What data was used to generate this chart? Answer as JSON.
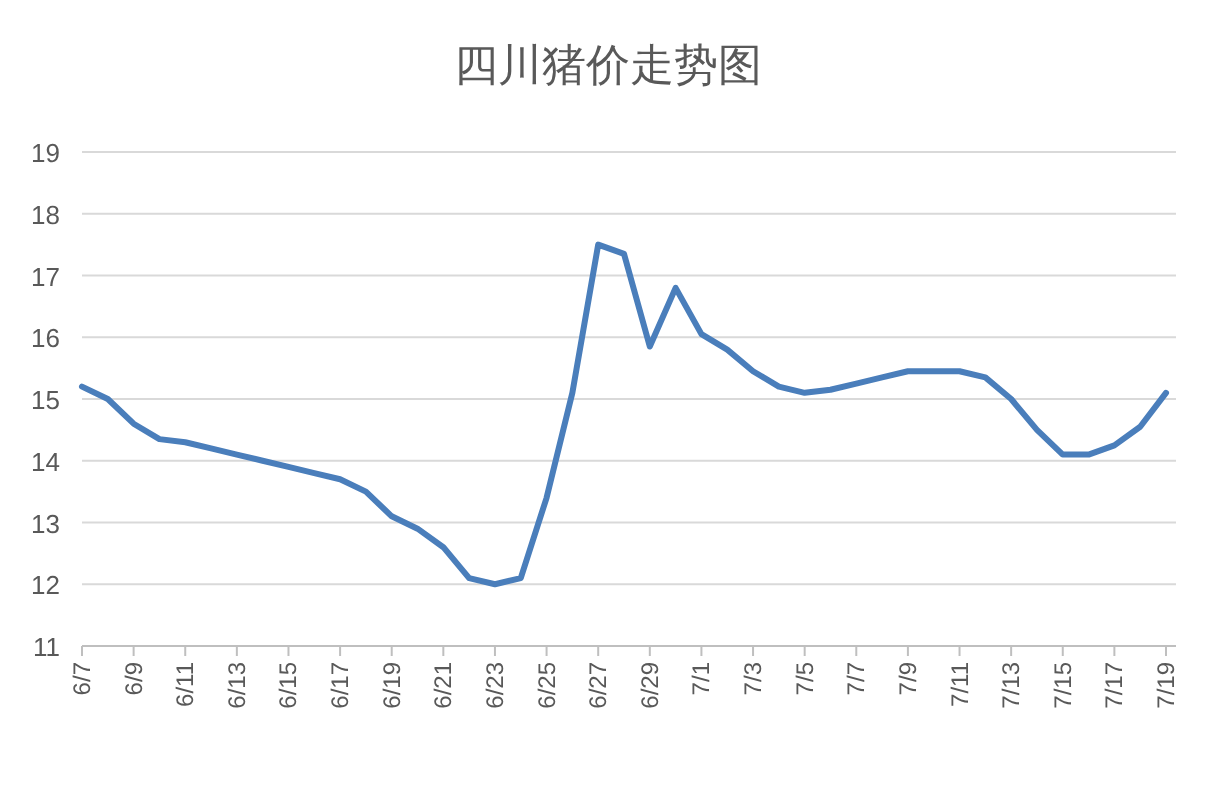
{
  "chart_data": {
    "type": "line",
    "title": "四川猪价走势图",
    "categories": [
      "6/7",
      null,
      "6/9",
      null,
      "6/11",
      null,
      "6/13",
      null,
      "6/15",
      null,
      "6/17",
      null,
      "6/19",
      null,
      "6/21",
      null,
      "6/23",
      null,
      "6/25",
      null,
      "6/27",
      null,
      "6/29",
      null,
      "7/1",
      null,
      "7/3",
      null,
      "7/5",
      null,
      "7/7",
      null,
      "7/9",
      null,
      "7/11",
      null,
      "7/13",
      null,
      "7/15",
      null,
      "7/17",
      null,
      "7/19"
    ],
    "series": [
      {
        "color": "#4a7ebb",
        "values": [
          15.2,
          15.0,
          14.6,
          14.35,
          14.3,
          14.2,
          14.1,
          14.0,
          13.9,
          13.8,
          13.7,
          13.5,
          13.1,
          12.9,
          12.6,
          12.1,
          12.0,
          12.1,
          13.4,
          15.1,
          17.5,
          17.35,
          15.85,
          16.8,
          16.05,
          15.8,
          15.45,
          15.2,
          15.1,
          15.15,
          15.25,
          15.35,
          15.45,
          15.45,
          15.45,
          15.35,
          15.0,
          14.5,
          14.1,
          14.1,
          14.25,
          14.55,
          15.1
        ]
      }
    ],
    "ylim": [
      11,
      19
    ],
    "yticks": [
      11,
      12,
      13,
      14,
      15,
      16,
      17,
      18,
      19
    ],
    "grid": "y",
    "marker": "none",
    "line_style": "solid"
  }
}
